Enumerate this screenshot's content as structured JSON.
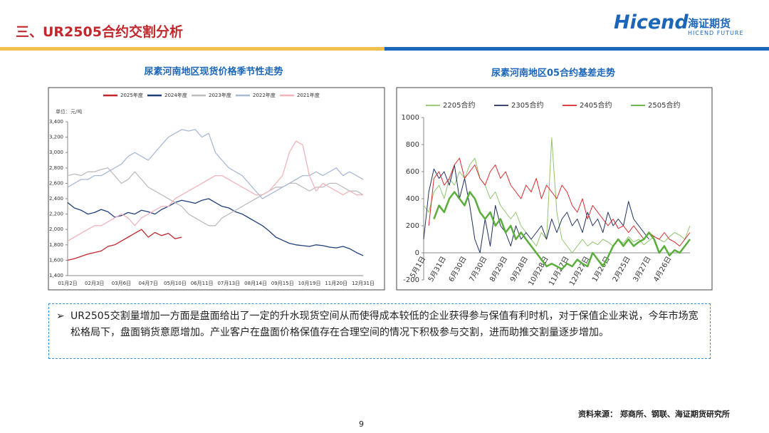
{
  "header": {
    "title": "三、UR2505合约交割分析",
    "logo": "Hicend",
    "logo_cn": "海证期货",
    "logo_en": "HICEND FUTURE"
  },
  "chart_data": [
    {
      "type": "line",
      "title": "尿素河南地区现货价格季节性走势",
      "unit_label": "单位：元/吨",
      "categories": [
        "01月2日",
        null,
        null,
        null,
        "02月3日",
        null,
        null,
        null,
        "03月6日",
        null,
        null,
        null,
        "04月7日",
        null,
        null,
        null,
        "05月10日",
        null,
        null,
        null,
        "06月11日",
        null,
        null,
        null,
        "07月13日",
        null,
        null,
        null,
        "08月14日",
        null,
        null,
        null,
        "09月15日",
        null,
        null,
        null,
        "10月19日",
        null,
        null,
        null,
        "11月20日",
        null,
        null,
        null,
        "12月31日"
      ],
      "series": [
        {
          "name": "2025年度",
          "color": "#c0282d",
          "values": [
            1600,
            1620,
            1650,
            1680,
            1700,
            1720,
            1780,
            1800,
            1850,
            1900,
            1950,
            2000,
            1900,
            1960,
            1920,
            1950,
            1880,
            1900,
            null,
            null,
            null,
            null,
            null,
            null,
            null,
            null,
            null,
            null,
            null,
            null,
            null,
            null,
            null,
            null,
            null,
            null,
            null,
            null,
            null,
            null,
            null,
            null,
            null,
            null,
            null
          ]
        },
        {
          "name": "2024年度",
          "color": "#1f3f7a",
          "values": [
            2350,
            2280,
            2250,
            2200,
            2220,
            2260,
            2230,
            2160,
            2180,
            2220,
            2200,
            2250,
            2230,
            2200,
            2260,
            2300,
            2350,
            2380,
            2360,
            2340,
            2380,
            2400,
            2350,
            2300,
            2280,
            2230,
            2200,
            2150,
            2100,
            2050,
            1980,
            1900,
            1860,
            1820,
            1800,
            1790,
            1780,
            1800,
            1790,
            1770,
            1760,
            1780,
            1750,
            1700,
            1660
          ]
        },
        {
          "name": "2023年度",
          "color": "#bdbdbd",
          "values": [
            2700,
            2720,
            2700,
            2750,
            2750,
            2780,
            2800,
            2700,
            2600,
            2650,
            2750,
            2650,
            2550,
            2500,
            2450,
            2400,
            2350,
            2300,
            2200,
            2150,
            2100,
            2050,
            2050,
            2150,
            2200,
            2250,
            2300,
            2350,
            2400,
            2450,
            2500,
            2550,
            2550,
            2600,
            2600,
            2550,
            2500,
            2550,
            2550,
            2600,
            2600,
            2550,
            2500,
            2500,
            2450
          ]
        },
        {
          "name": "2022年度",
          "color": "#a9b9d6",
          "values": [
            2550,
            2600,
            2650,
            2650,
            2700,
            2700,
            2750,
            2800,
            2850,
            2950,
            3000,
            2950,
            2900,
            3000,
            3100,
            3200,
            3250,
            3300,
            3280,
            3300,
            3200,
            3250,
            3000,
            2900,
            2800,
            2750,
            2700,
            2600,
            2500,
            2400,
            2450,
            2500,
            2550,
            2600,
            2650,
            2700,
            2700,
            2750,
            2700,
            2750,
            2800,
            2700,
            2750,
            2700,
            2650
          ]
        },
        {
          "name": "2021年度",
          "color": "#f2b3bb",
          "values": [
            1850,
            1900,
            1950,
            2000,
            2050,
            2050,
            2100,
            2150,
            2200,
            2150,
            2050,
            2150,
            2200,
            2250,
            2300,
            2300,
            2400,
            2450,
            2500,
            2550,
            2600,
            2650,
            2700,
            2700,
            2650,
            2600,
            2550,
            2500,
            2450,
            2450,
            2500,
            2600,
            2700,
            3000,
            3150,
            3100,
            2700,
            2500,
            2600,
            2550,
            2500,
            2450,
            2500,
            2450,
            2450
          ]
        }
      ],
      "ylim": [
        1400,
        3400
      ],
      "yticks": [
        {
          "value": 1400,
          "label": "1,400"
        },
        {
          "value": 1600,
          "label": "1,600"
        },
        {
          "value": 1800,
          "label": "1,800"
        },
        {
          "value": 2000,
          "label": "2,000"
        },
        {
          "value": 2200,
          "label": "2,200"
        },
        {
          "value": 2400,
          "label": "2,400"
        },
        {
          "value": 2600,
          "label": "2,600"
        },
        {
          "value": 2800,
          "label": "2,800"
        },
        {
          "value": 3000,
          "label": "3,000"
        },
        {
          "value": 3200,
          "label": "3,200"
        },
        {
          "value": 3400,
          "label": "3,400"
        }
      ]
    },
    {
      "type": "line",
      "title": "尿素河南地区05合约基差走势",
      "categories": [
        "5月1日",
        null,
        null,
        null,
        "5月31日",
        null,
        null,
        null,
        "6月30日",
        null,
        null,
        null,
        "7月30日",
        null,
        null,
        null,
        "8月29日",
        null,
        null,
        null,
        "9月28日",
        null,
        null,
        null,
        "10月28日",
        null,
        null,
        null,
        "11月27日",
        null,
        null,
        null,
        "12月27日",
        null,
        null,
        null,
        "1月26日",
        null,
        null,
        null,
        "2月25日",
        null,
        null,
        null,
        "3月27日",
        null,
        null,
        null,
        "4月26日",
        null,
        null,
        null,
        null
      ],
      "series": [
        {
          "name": "2205合约",
          "color": "#8fc56a",
          "width": 1,
          "values": [
            350,
            300,
            450,
            500,
            400,
            550,
            500,
            600,
            550,
            650,
            700,
            550,
            500,
            400,
            450,
            350,
            300,
            250,
            300,
            200,
            150,
            100,
            50,
            150,
            100,
            850,
            300,
            100,
            50,
            0,
            50,
            100,
            50,
            80,
            60,
            100,
            80,
            50,
            100,
            70,
            120,
            80,
            100,
            60,
            90,
            120,
            100,
            80,
            120,
            150,
            130,
            100,
            200
          ]
        },
        {
          "name": "2305合约",
          "color": "#1f2f5f",
          "width": 1,
          "values": [
            100,
            450,
            620,
            550,
            600,
            500,
            650,
            400,
            550,
            350,
            100,
            0,
            250,
            50,
            350,
            200,
            150,
            50,
            200,
            100,
            150,
            100,
            150,
            200,
            100,
            250,
            150,
            250,
            300,
            200,
            250,
            150,
            300,
            200,
            250,
            150,
            300,
            200,
            250,
            200,
            380,
            250,
            200,
            150,
            100,
            null,
            null,
            null,
            null,
            null,
            null,
            null,
            null
          ]
        },
        {
          "name": "2405合约",
          "color": "#d9262b",
          "width": 1,
          "values": [
            null,
            200,
            550,
            600,
            500,
            550,
            650,
            700,
            550,
            600,
            650,
            550,
            500,
            600,
            650,
            550,
            600,
            500,
            450,
            400,
            500,
            450,
            550,
            400,
            500,
            450,
            400,
            500,
            450,
            350,
            300,
            400,
            250,
            350,
            300,
            250,
            200,
            250,
            180,
            200,
            150,
            200,
            150,
            100,
            150,
            120,
            100,
            150,
            100,
            80,
            50,
            100,
            150
          ]
        },
        {
          "name": "2505合约",
          "color": "#5aae3a",
          "width": 2.5,
          "values": [
            null,
            null,
            250,
            350,
            300,
            400,
            450,
            400,
            350,
            450,
            400,
            300,
            250,
            300,
            200,
            250,
            150,
            200,
            100,
            150,
            100,
            50,
            0,
            -50,
            -100,
            -80,
            -100,
            -120,
            -80,
            -100,
            -50,
            -80,
            -100,
            0,
            -50,
            -100,
            -30,
            50,
            100,
            50,
            100,
            50,
            80,
            100,
            150,
            100,
            0,
            50,
            -20,
            20,
            0,
            50,
            100
          ]
        }
      ],
      "ylim": [
        -200,
        1000
      ],
      "yticks": [
        -200,
        0,
        200,
        400,
        600,
        800,
        1000
      ]
    }
  ],
  "note": {
    "text": "UR2505交割量增加一方面是盘面给出了一定的升水现货空间从而使得成本较低的企业获得参与保值有利时机，对于保值企业来说，今年市场宽松格局下，盘面销货意愿增加。产业客户在盘面价格保值存在合理空间的情况下积极参与交割，进而助推交割量逐步增加。"
  },
  "footer": {
    "source": "资料来源： 郑商所、钢联、海证期货研究所",
    "page": 9
  }
}
